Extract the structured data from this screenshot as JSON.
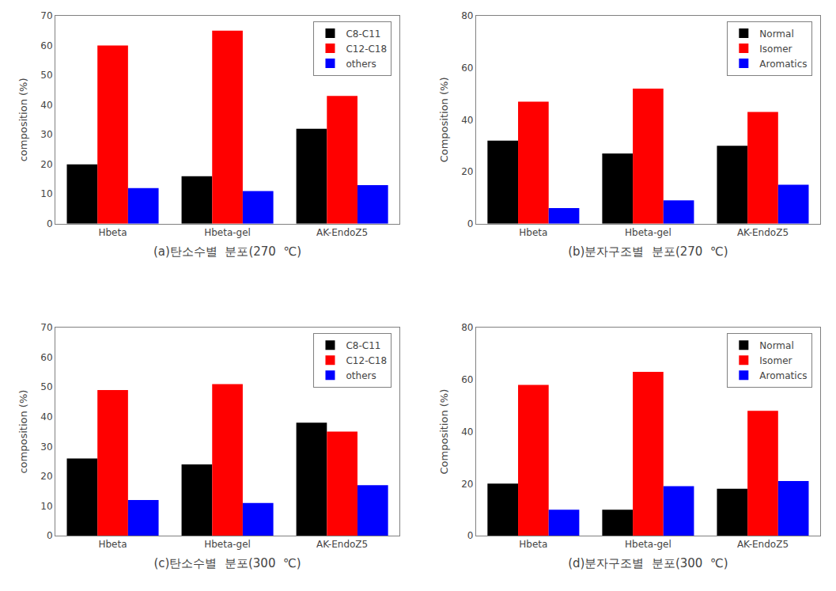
{
  "chart_data": [
    {
      "type": "bar",
      "xlabel": "(a)탄소수별  분포(270  ℃)",
      "ylabel": "composition (%)",
      "categories": [
        "Hbeta",
        "Hbeta-gel",
        "AK-EndoZ5"
      ],
      "series": [
        {
          "name": "C8-C11",
          "color": "#000000",
          "values": [
            20,
            16,
            32
          ]
        },
        {
          "name": "C12-C18",
          "color": "#ff0000",
          "values": [
            60,
            65,
            43
          ]
        },
        {
          "name": "others",
          "color": "#0000ff",
          "values": [
            12,
            11,
            13
          ]
        }
      ],
      "ylim": [
        0,
        70
      ],
      "yticks": [
        0,
        10,
        20,
        30,
        40,
        50,
        60,
        70
      ],
      "grid": false,
      "legend": "upper right"
    },
    {
      "type": "bar",
      "xlabel": "(b)분자구조별  분포(270  ℃)",
      "ylabel": "Composition (%)",
      "categories": [
        "Hbeta",
        "Hbeta-gel",
        "AK-EndoZ5"
      ],
      "series": [
        {
          "name": "Normal",
          "color": "#000000",
          "values": [
            32,
            27,
            30
          ]
        },
        {
          "name": "Isomer",
          "color": "#ff0000",
          "values": [
            47,
            52,
            43
          ]
        },
        {
          "name": "Aromatics",
          "color": "#0000ff",
          "values": [
            6,
            9,
            15
          ]
        }
      ],
      "ylim": [
        0,
        80
      ],
      "yticks": [
        0,
        20,
        40,
        60,
        80
      ],
      "grid": false,
      "legend": "upper right"
    },
    {
      "type": "bar",
      "xlabel": "(c)탄소수별  분포(300  ℃)",
      "ylabel": "composition (%)",
      "categories": [
        "Hbeta",
        "Hbeta-gel",
        "AK-EndoZ5"
      ],
      "series": [
        {
          "name": "C8-C11",
          "color": "#000000",
          "values": [
            26,
            24,
            38
          ]
        },
        {
          "name": "C12-C18",
          "color": "#ff0000",
          "values": [
            49,
            51,
            35
          ]
        },
        {
          "name": "others",
          "color": "#0000ff",
          "values": [
            12,
            11,
            17
          ]
        }
      ],
      "ylim": [
        0,
        70
      ],
      "yticks": [
        0,
        10,
        20,
        30,
        40,
        50,
        60,
        70
      ],
      "grid": false,
      "legend": "upper right"
    },
    {
      "type": "bar",
      "xlabel": "(d)분자구조별  분포(300  ℃)",
      "ylabel": "Composition (%)",
      "categories": [
        "Hbeta",
        "Hbeta-gel",
        "AK-EndoZ5"
      ],
      "series": [
        {
          "name": "Normal",
          "color": "#000000",
          "values": [
            20,
            10,
            18
          ]
        },
        {
          "name": "Isomer",
          "color": "#ff0000",
          "values": [
            58,
            63,
            48
          ]
        },
        {
          "name": "Aromatics",
          "color": "#0000ff",
          "values": [
            10,
            19,
            21
          ]
        }
      ],
      "ylim": [
        0,
        80
      ],
      "yticks": [
        0,
        20,
        40,
        60,
        80
      ],
      "grid": false,
      "legend": "upper right"
    }
  ]
}
